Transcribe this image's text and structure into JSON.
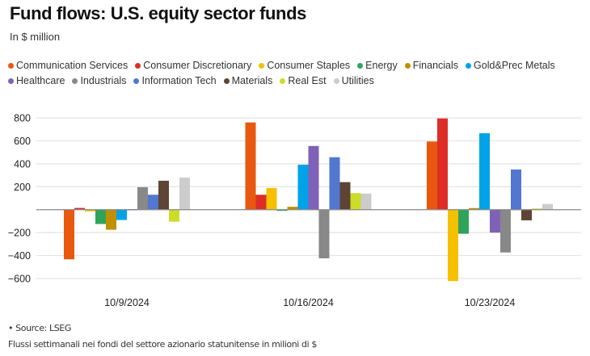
{
  "header": {
    "title": "Fund flows: U.S. equity sector funds",
    "subtitle": "In $ million"
  },
  "footer": {
    "source": "• Source: LSEG",
    "note": "Flussi settimanali nei fondi del settore azionario statunitense in milioni di $"
  },
  "chart_data": {
    "type": "bar",
    "title": "Fund flows: U.S. equity sector funds",
    "subtitle": "In $ million",
    "xlabel": "",
    "ylabel": "",
    "ylim": [
      -600,
      800
    ],
    "yticks": [
      800,
      600,
      400,
      200,
      0,
      -200,
      -400,
      -600
    ],
    "ytick_labels": [
      "800",
      "600",
      "400",
      "200",
      "",
      "−200",
      "−400",
      "−600"
    ],
    "grid": true,
    "legend_position": "top",
    "categories": [
      "10/9/2024",
      "10/16/2024",
      "10/23/2024"
    ],
    "series": [
      {
        "name": "Communication Services",
        "color": "#E8580F",
        "values": [
          -433,
          760,
          594
        ]
      },
      {
        "name": "Consumer Discretionary",
        "color": "#DE2D26",
        "values": [
          15,
          130,
          795
        ]
      },
      {
        "name": "Consumer Staples",
        "color": "#F5C000",
        "values": [
          -15,
          189,
          -622
        ]
      },
      {
        "name": "Energy",
        "color": "#2FA35A",
        "values": [
          -125,
          -10,
          -210
        ]
      },
      {
        "name": "Financials",
        "color": "#C09000",
        "values": [
          -175,
          25,
          14
        ]
      },
      {
        "name": "Gold&Prec Metals",
        "color": "#00A2E8",
        "values": [
          -90,
          392,
          666
        ]
      },
      {
        "name": "Healthcare",
        "color": "#7F62B8",
        "values": [
          5,
          555,
          -200
        ]
      },
      {
        "name": "Industrials",
        "color": "#888888",
        "values": [
          196,
          -424,
          -373
        ]
      },
      {
        "name": "Information Tech",
        "color": "#5277D0",
        "values": [
          130,
          457,
          350
        ]
      },
      {
        "name": "Materials",
        "color": "#5E4434",
        "values": [
          252,
          240,
          -93
        ]
      },
      {
        "name": "Real Est",
        "color": "#CDDC29",
        "values": [
          -105,
          144,
          10
        ]
      },
      {
        "name": "Utilities",
        "color": "#CCCCCC",
        "values": [
          280,
          140,
          49
        ]
      }
    ]
  }
}
